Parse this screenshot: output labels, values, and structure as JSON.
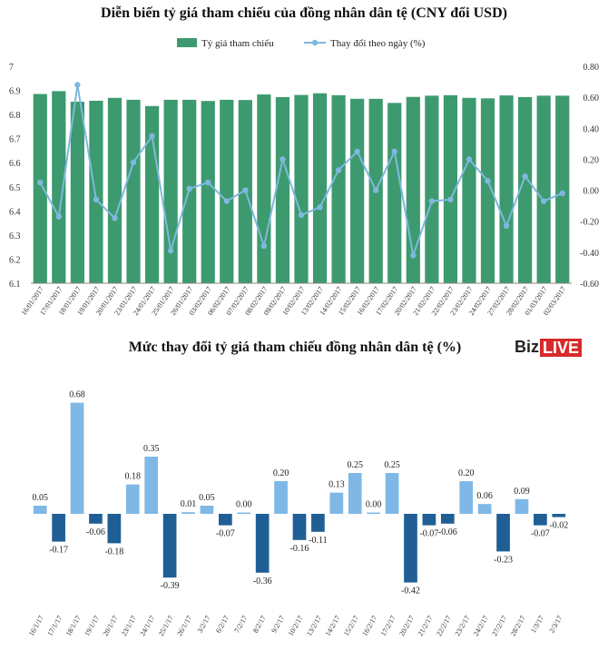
{
  "chart_data": [
    {
      "type": "bar+line",
      "title": "Diễn biến tỷ giá tham chiếu của đồng nhân dân tệ (CNY đổi USD)",
      "legend": [
        "Tỷ giá tham chiếu",
        "Thay đổi theo ngày (%)"
      ],
      "legend_position": "top-center",
      "categories": [
        "16/01/2017",
        "17/01/2017",
        "18/01/2017",
        "19/01/2017",
        "20/01/2017",
        "23/01/2017",
        "24/01/2017",
        "25/01/2017",
        "26/01/2017",
        "03/02/2017",
        "06/02/2017",
        "07/02/2017",
        "08/02/2017",
        "09/02/2017",
        "10/02/2017",
        "13/02/2017",
        "14/02/2017",
        "15/02/2017",
        "16/02/2017",
        "17/02/2017",
        "20/02/2017",
        "21/02/2017",
        "22/02/2017",
        "23/02/2017",
        "24/02/2017",
        "27/02/2017",
        "28/02/2017",
        "01/03/2017",
        "02/03/2017"
      ],
      "series": [
        {
          "name": "Tỷ giá tham chiếu",
          "type": "bar",
          "axis": "left",
          "values": [
            6.885,
            6.897,
            6.853,
            6.857,
            6.869,
            6.861,
            6.835,
            6.861,
            6.861,
            6.856,
            6.861,
            6.86,
            6.883,
            6.872,
            6.881,
            6.888,
            6.88,
            6.865,
            6.865,
            6.848,
            6.873,
            6.878,
            6.88,
            6.869,
            6.867,
            6.879,
            6.872,
            6.878,
            6.878
          ]
        },
        {
          "name": "Thay đổi theo ngày (%)",
          "type": "line",
          "axis": "right",
          "values": [
            0.05,
            -0.17,
            0.68,
            -0.06,
            -0.18,
            0.18,
            0.35,
            -0.39,
            0.01,
            0.05,
            -0.07,
            0.0,
            -0.36,
            0.2,
            -0.16,
            -0.11,
            0.13,
            0.25,
            0.0,
            0.25,
            -0.42,
            -0.07,
            -0.06,
            0.2,
            0.06,
            -0.23,
            0.09,
            -0.07,
            -0.02
          ]
        }
      ],
      "left_axis": {
        "min": 6.1,
        "max": 7,
        "ticks": [
          "6.1",
          "6.2",
          "6.3",
          "6.4",
          "6.5",
          "6.6",
          "6.7",
          "6.8",
          "6.9",
          "7"
        ]
      },
      "right_axis": {
        "min": -0.6,
        "max": 0.8,
        "ticks": [
          "-0.60",
          "-0.40",
          "-0.20",
          "0.00",
          "0.20",
          "0.40",
          "0.60",
          "0.80"
        ]
      },
      "colors": {
        "bar": "#3d9a6e",
        "line": "#7fb8df"
      }
    },
    {
      "type": "bar",
      "title": "Mức thay đổi tỷ giá tham chiếu  đồng nhân dân tệ (%)",
      "categories": [
        "16/1/17",
        "17/1/17",
        "18/1/17",
        "19/1/17",
        "20/1/17",
        "23/1/17",
        "24/1/17",
        "25/1/17",
        "26/1/17",
        "3/2/17",
        "6/2/17",
        "7/2/17",
        "8/2/17",
        "9/2/17",
        "10/2/17",
        "13/2/17",
        "14/2/17",
        "15/2/17",
        "16/2/17",
        "17/2/17",
        "20/2/17",
        "21/2/17",
        "22/2/17",
        "23/2/17",
        "24/2/17",
        "27/2/17",
        "28/2/17",
        "1/3/17",
        "2/3/17"
      ],
      "values": [
        0.05,
        -0.17,
        0.68,
        -0.06,
        -0.18,
        0.18,
        0.35,
        -0.39,
        0.01,
        0.05,
        -0.07,
        0.0,
        -0.36,
        0.2,
        -0.16,
        -0.11,
        0.13,
        0.25,
        0.0,
        0.25,
        -0.42,
        -0.07,
        -0.06,
        0.2,
        0.06,
        -0.23,
        0.09,
        -0.07,
        -0.02
      ],
      "labels": [
        "0.05",
        "-0.17",
        "0.68",
        "-0.06",
        "-0.18",
        "0.18",
        "0.35",
        "-0.39",
        "0.01",
        "0.05",
        "-0.07",
        "0.00",
        "-0.36",
        "0.20",
        "-0.16",
        "-0.11",
        "0.13",
        "0.25",
        "0.00",
        "0.25",
        "-0.42",
        "-0.07",
        "-0.06",
        "0.20",
        "0.06",
        "-0.23",
        "0.09",
        "-0.07",
        "-0.02"
      ],
      "colors": {
        "positive": "#7fb8e6",
        "negative": "#1f5f95"
      }
    }
  ],
  "logo": {
    "part1": "Biz",
    "part2": "LIVE"
  }
}
